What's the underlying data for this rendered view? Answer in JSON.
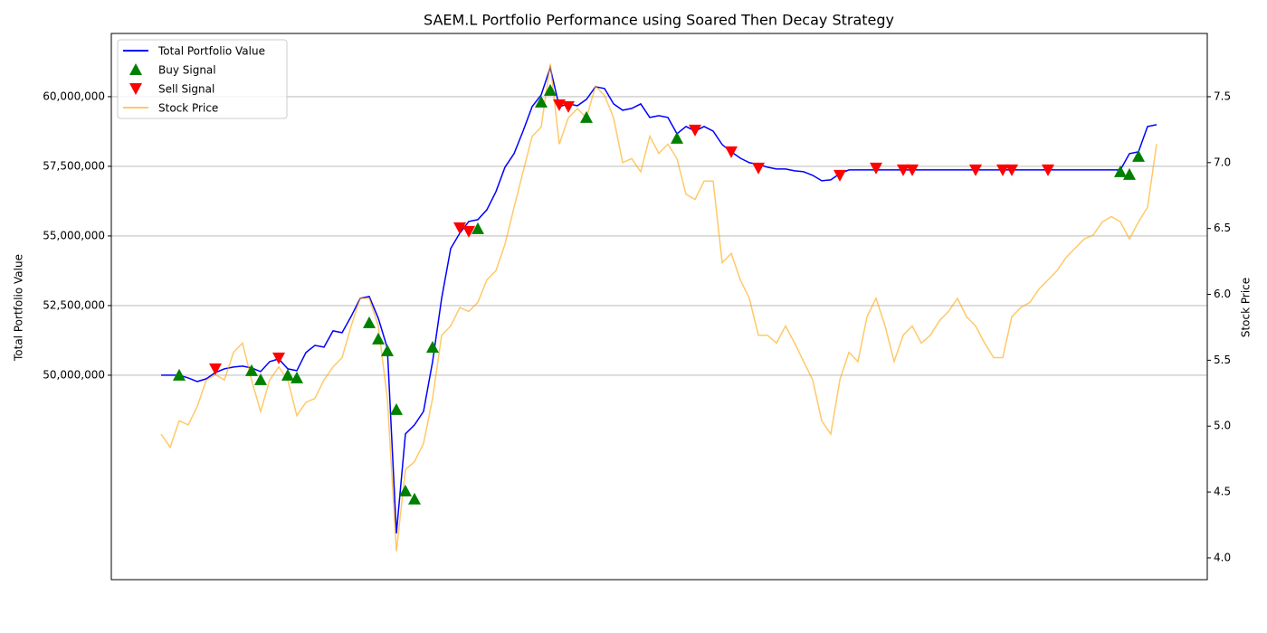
{
  "chart_data": {
    "type": "line",
    "title": "SAEM.L Portfolio Performance using Soared Then Decay Strategy",
    "ylabel": "Total Portfolio Value",
    "y2label": "Stock Price",
    "ylim": [
      42660000,
      62270000
    ],
    "yticks": [
      {
        "value": 50000000,
        "label": "50,000,000"
      },
      {
        "value": 52500000,
        "label": "52,500,000"
      },
      {
        "value": 55000000,
        "label": "55,000,000"
      },
      {
        "value": 57500000,
        "label": "57,500,000"
      },
      {
        "value": 60000000,
        "label": "60,000,000"
      }
    ],
    "y2lim": [
      3.835,
      7.98
    ],
    "y2ticks": [
      {
        "value": 4,
        "label": "4.0"
      },
      4.5,
      {
        "value": 5,
        "label": "5.0"
      },
      5.5,
      {
        "value": 6,
        "label": "6.0"
      },
      6.5,
      {
        "value": 7,
        "label": "7.0"
      },
      7.5
    ],
    "grid": true,
    "legend": "upper left",
    "series": [
      {
        "name": "Total Portfolio Value",
        "type": "line",
        "color": "#0000ff",
        "values": [
          50000000,
          50000000,
          50000000,
          49903000,
          49773000,
          49870000,
          50097000,
          50227000,
          50292000,
          50325000,
          50260000,
          50130000,
          50487000,
          50584000,
          50227000,
          50162000,
          50812000,
          51071000,
          51006000,
          51591000,
          51526000,
          52110000,
          52760000,
          52825000,
          52045000,
          50974000,
          44318000,
          47890000,
          48214000,
          48701000,
          50487000,
          52760000,
          54545000,
          55097000,
          55520000,
          55584000,
          55942000,
          56591000,
          57468000,
          57955000,
          58766000,
          59643000,
          60065000,
          61039000,
          59643000,
          59740000,
          59675000,
          59903000,
          60357000,
          60292000,
          59740000,
          59513000,
          59578000,
          59740000,
          59253000,
          59318000,
          59253000,
          58669000,
          58929000,
          58766000,
          58929000,
          58766000,
          58279000,
          58020000,
          57792000,
          57630000,
          57565000,
          57468000,
          57403000,
          57403000,
          57338000,
          57305000,
          57175000,
          56981000,
          57013000,
          57240000,
          57370000,
          57370000,
          57370000,
          57370000,
          57370000,
          57370000,
          57370000,
          57370000,
          57370000,
          57370000,
          57370000,
          57370000,
          57370000,
          57370000,
          57370000,
          57370000,
          57370000,
          57370000,
          57370000,
          57370000,
          57370000,
          57370000,
          57370000,
          57370000,
          57370000,
          57370000,
          57370000,
          57370000,
          57370000,
          57370000,
          57370000,
          57955000,
          58020000,
          58929000,
          58994000
        ]
      },
      {
        "name": "Buy Signal",
        "type": "scatter",
        "marker": "up",
        "color": "#008000",
        "values": [
          null,
          null,
          50000000,
          null,
          null,
          null,
          null,
          null,
          null,
          null,
          50162000,
          49838000,
          null,
          null,
          50000000,
          49903000,
          null,
          null,
          null,
          null,
          null,
          null,
          null,
          51883000,
          51299000,
          50877000,
          48766000,
          45844000,
          45552000,
          null,
          51006000,
          null,
          null,
          null,
          null,
          55260000,
          null,
          null,
          null,
          null,
          null,
          null,
          59805000,
          60227000,
          null,
          null,
          null,
          59253000,
          null,
          null,
          null,
          null,
          null,
          null,
          null,
          null,
          null,
          58507000,
          null,
          null,
          null,
          null,
          null,
          null,
          null,
          null,
          null,
          null,
          null,
          null,
          null,
          null,
          null,
          null,
          null,
          null,
          null,
          null,
          null,
          null,
          null,
          null,
          null,
          null,
          null,
          null,
          null,
          null,
          null,
          null,
          null,
          null,
          null,
          null,
          null,
          null,
          null,
          null,
          null,
          null,
          null,
          null,
          null,
          null,
          null,
          null,
          57305000,
          57208000,
          57857000,
          null,
          null
        ]
      },
      {
        "name": "Sell Signal",
        "type": "scatter",
        "marker": "down",
        "color": "#ff0000",
        "values": [
          null,
          null,
          null,
          null,
          null,
          null,
          50227000,
          null,
          null,
          null,
          null,
          null,
          null,
          50617000,
          null,
          null,
          null,
          null,
          null,
          null,
          null,
          null,
          null,
          null,
          null,
          null,
          null,
          null,
          null,
          null,
          null,
          null,
          null,
          55292000,
          55162000,
          null,
          null,
          null,
          null,
          null,
          null,
          null,
          null,
          null,
          59708000,
          59643000,
          null,
          null,
          null,
          null,
          null,
          null,
          null,
          null,
          null,
          null,
          null,
          null,
          null,
          58799000,
          null,
          null,
          null,
          58020000,
          null,
          null,
          57435000,
          null,
          null,
          null,
          null,
          null,
          null,
          null,
          null,
          57175000,
          null,
          null,
          null,
          57435000,
          null,
          null,
          57370000,
          57370000,
          null,
          null,
          null,
          null,
          null,
          null,
          57370000,
          null,
          null,
          57370000,
          57370000,
          null,
          null,
          null,
          57370000,
          null,
          null,
          null,
          null,
          null,
          null,
          null,
          null,
          null,
          null,
          null,
          null
        ]
      },
      {
        "name": "Stock Price",
        "type": "line",
        "axis": "y2",
        "color": "#ffa500",
        "opacity": 0.6,
        "values": [
          4.94,
          4.84,
          5.04,
          5.01,
          5.15,
          5.35,
          5.39,
          5.35,
          5.56,
          5.63,
          5.35,
          5.11,
          5.35,
          5.45,
          5.35,
          5.08,
          5.18,
          5.21,
          5.35,
          5.45,
          5.52,
          5.76,
          5.97,
          5.97,
          5.76,
          5.21,
          4.05,
          4.67,
          4.73,
          4.87,
          5.21,
          5.69,
          5.76,
          5.9,
          5.87,
          5.94,
          6.11,
          6.18,
          6.38,
          6.66,
          6.93,
          7.2,
          7.27,
          7.75,
          7.14,
          7.34,
          7.41,
          7.34,
          7.58,
          7.51,
          7.34,
          7,
          7.03,
          6.93,
          7.2,
          7.07,
          7.14,
          7.03,
          6.76,
          6.72,
          6.86,
          6.86,
          6.24,
          6.31,
          6.11,
          5.97,
          5.69,
          5.69,
          5.63,
          5.76,
          5.63,
          5.49,
          5.35,
          5.04,
          4.94,
          5.35,
          5.56,
          5.49,
          5.83,
          5.97,
          5.76,
          5.49,
          5.69,
          5.76,
          5.63,
          5.69,
          5.8,
          5.87,
          5.97,
          5.83,
          5.76,
          5.63,
          5.52,
          5.52,
          5.83,
          5.9,
          5.94,
          6.04,
          6.11,
          6.18,
          6.28,
          6.35,
          6.42,
          6.45,
          6.55,
          6.59,
          6.55,
          6.42,
          6.55,
          6.66,
          7.14
        ]
      }
    ]
  }
}
